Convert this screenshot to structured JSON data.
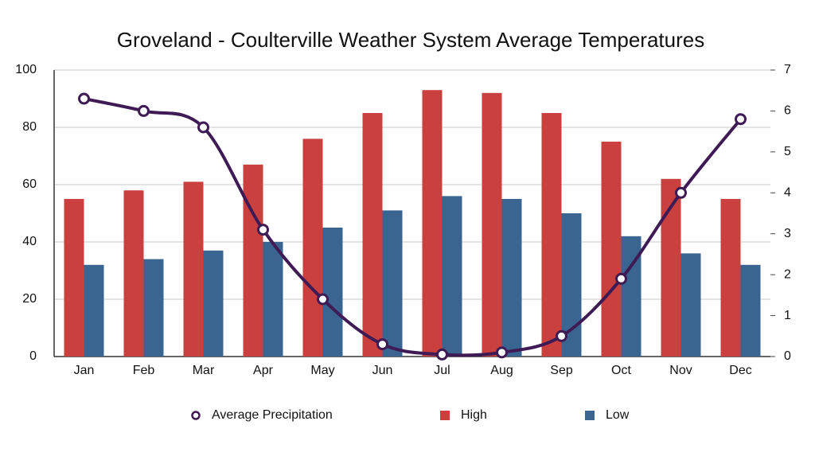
{
  "chart_data": {
    "type": "bar",
    "title": "Groveland - Coulterville Weather System Average Temperatures",
    "categories": [
      "Jan",
      "Feb",
      "Mar",
      "Apr",
      "May",
      "Jun",
      "Jul",
      "Aug",
      "Sep",
      "Oct",
      "Nov",
      "Dec"
    ],
    "series": [
      {
        "name": "Average Precipitation",
        "type": "line",
        "axis": "y2",
        "color": "#3f1b55",
        "values": [
          6.3,
          6.0,
          5.6,
          3.1,
          1.4,
          0.3,
          0.05,
          0.1,
          0.5,
          1.9,
          4.0,
          5.8
        ]
      },
      {
        "name": "High",
        "type": "bar",
        "color": "#c9403f",
        "values": [
          55,
          58,
          61,
          67,
          76,
          85,
          93,
          92,
          85,
          75,
          62,
          55
        ]
      },
      {
        "name": "Low",
        "type": "bar",
        "color": "#3a6591",
        "values": [
          32,
          34,
          37,
          40,
          45,
          51,
          56,
          55,
          50,
          42,
          36,
          32
        ]
      }
    ],
    "ylim": [
      0,
      100
    ],
    "yticks": [
      0,
      20,
      40,
      60,
      80,
      100
    ],
    "y2lim": [
      0,
      7
    ],
    "y2ticks": [
      0,
      1,
      2,
      3,
      4,
      5,
      6,
      7
    ],
    "grid": true,
    "legend": "bottom"
  }
}
